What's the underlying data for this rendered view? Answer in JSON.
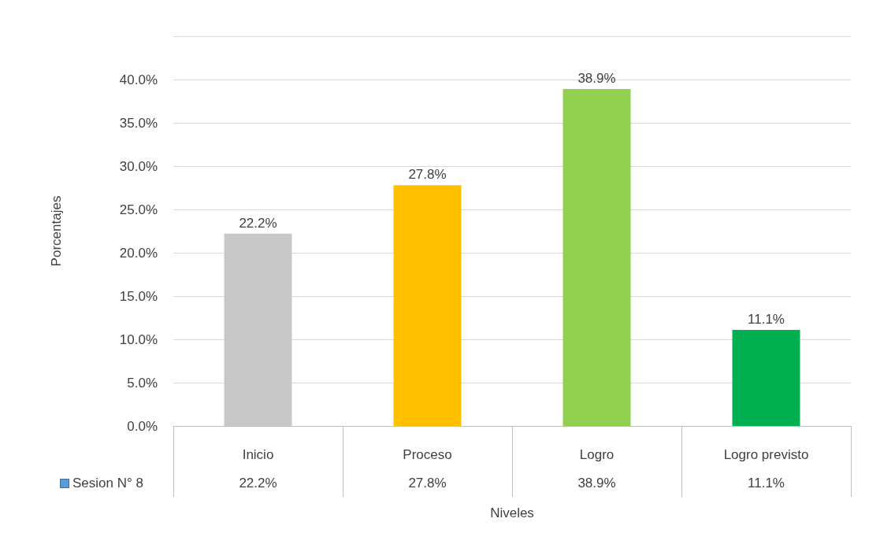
{
  "chart_data": {
    "type": "bar",
    "xlabel": "Niveles",
    "ylabel": "Porcentajes",
    "categories": [
      "Inicio",
      "Proceso",
      "Logro",
      "Logro previsto"
    ],
    "series": [
      {
        "name": "Sesion N° 8",
        "color": "#5b9bd5",
        "values": [
          22.2,
          27.8,
          38.9,
          11.1
        ],
        "colors": [
          "#c8c8c8",
          "#ffc000",
          "#92d050",
          "#00b050"
        ],
        "value_labels": [
          "22.2%",
          "27.8%",
          "38.9%",
          "11.1%"
        ]
      }
    ],
    "ylim": [
      0,
      45
    ],
    "yticks": [
      {
        "value": 0,
        "label": "0.0%"
      },
      {
        "value": 5,
        "label": "5.0%"
      },
      {
        "value": 10,
        "label": "10.0%"
      },
      {
        "value": 15,
        "label": "15.0%"
      },
      {
        "value": 20,
        "label": "20.0%"
      },
      {
        "value": 25,
        "label": "25.0%"
      },
      {
        "value": 30,
        "label": "30.0%"
      },
      {
        "value": 35,
        "label": "35.0%"
      },
      {
        "value": 40,
        "label": "40.0%"
      },
      {
        "value": 45,
        "label": null
      }
    ],
    "grid": "y",
    "legend": "bottom left"
  }
}
